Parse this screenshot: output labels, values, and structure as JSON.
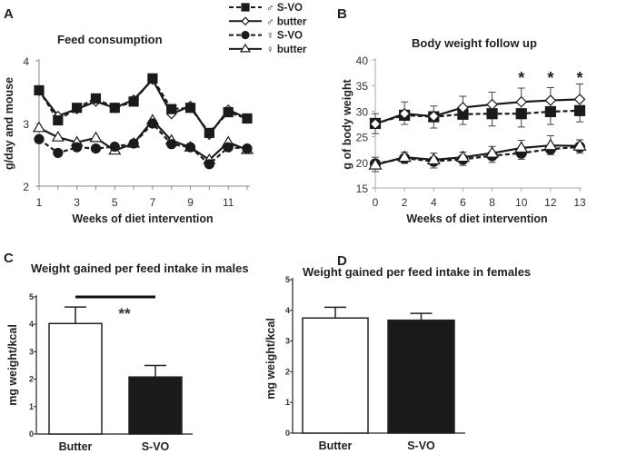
{
  "legend": [
    {
      "label": "♂ S-VO",
      "marker": "square",
      "fill": "#1a1a1a",
      "dashed": true
    },
    {
      "label": "♂ butter",
      "marker": "diamond",
      "fill": "#ffffff",
      "dashed": false
    },
    {
      "label": "♀ S-VO",
      "marker": "circle",
      "fill": "#1a1a1a",
      "dashed": true
    },
    {
      "label": "♀ butter",
      "marker": "triangle",
      "fill": "#ffffff",
      "dashed": false
    }
  ],
  "chart_data": [
    {
      "panel": "A",
      "type": "line",
      "title": "Feed consumption",
      "xlabel": "Weeks of diet intervention",
      "ylabel": "g/day and mouse",
      "x": [
        1,
        2,
        3,
        4,
        5,
        6,
        7,
        8,
        9,
        10,
        11,
        12
      ],
      "xticks": [
        "1",
        "3",
        "5",
        "7",
        "9",
        "11"
      ],
      "yticks": [
        "2",
        "3",
        "4"
      ],
      "ylim": [
        2,
        4
      ],
      "series": [
        {
          "name": "♂ butter",
          "values": [
            3.52,
            3.12,
            3.23,
            3.35,
            3.25,
            3.38,
            3.7,
            3.15,
            3.28,
            2.82,
            3.22,
            3.08
          ]
        },
        {
          "name": "♂ S-VO",
          "values": [
            3.53,
            3.05,
            3.25,
            3.4,
            3.25,
            3.35,
            3.72,
            3.23,
            3.25,
            2.85,
            3.18,
            3.08
          ]
        },
        {
          "name": "♀ butter",
          "values": [
            2.93,
            2.78,
            2.7,
            2.77,
            2.57,
            2.68,
            3.05,
            2.73,
            2.62,
            2.42,
            2.7,
            2.58
          ]
        },
        {
          "name": "♀ S-VO",
          "values": [
            2.75,
            2.53,
            2.62,
            2.6,
            2.63,
            2.68,
            3.0,
            2.67,
            2.62,
            2.35,
            2.62,
            2.6
          ]
        }
      ]
    },
    {
      "panel": "B",
      "type": "line",
      "title": "Body weight follow up",
      "xlabel": "Weeks of diet intervention",
      "ylabel": "g of body weight",
      "x": [
        0,
        2,
        4,
        6,
        8,
        10,
        12,
        13
      ],
      "yticks": [
        "15",
        "20",
        "25",
        "30",
        "35",
        "40"
      ],
      "ylim": [
        15,
        40
      ],
      "significance": {
        "label": "*",
        "at": [
          10,
          12,
          13
        ]
      },
      "series": [
        {
          "name": "♂ S-VO",
          "values": [
            27.6,
            29.2,
            28.9,
            29.4,
            29.5,
            29.5,
            29.9,
            30.1
          ],
          "err": [
            2.0,
            1.8,
            2.2,
            2.0,
            2.4,
            2.6,
            2.5,
            2.2
          ]
        },
        {
          "name": "♂ butter",
          "values": [
            27.5,
            29.5,
            29.0,
            30.7,
            31.3,
            31.8,
            32.1,
            32.3
          ],
          "err": [
            2.0,
            2.3,
            2.0,
            2.2,
            2.4,
            2.7,
            2.5,
            3.0
          ]
        },
        {
          "name": "♀ S-VO",
          "values": [
            19.7,
            20.8,
            20.2,
            20.6,
            21.3,
            21.8,
            22.6,
            23.0
          ],
          "err": [
            1.5,
            1.0,
            1.3,
            1.2,
            1.3,
            1.2,
            1.1,
            1.2
          ]
        },
        {
          "name": "♀ butter",
          "values": [
            19.5,
            21.0,
            20.5,
            21.0,
            21.8,
            22.8,
            23.3,
            23.2
          ],
          "err": [
            1.5,
            1.0,
            1.3,
            1.0,
            1.3,
            1.5,
            1.9,
            1.2
          ]
        }
      ]
    },
    {
      "panel": "C",
      "type": "bar",
      "title": "Weight gained per feed intake in males",
      "ylabel": "mg weight/kcal",
      "categories": [
        "Butter",
        "S-VO"
      ],
      "values": [
        4.03,
        2.08
      ],
      "err": [
        0.6,
        0.42
      ],
      "colors": [
        "#ffffff",
        "#1a1a1a"
      ],
      "yticks": [
        "0",
        "1",
        "2",
        "3",
        "4",
        "5"
      ],
      "ylim": [
        0,
        5
      ],
      "significance": "**"
    },
    {
      "panel": "D",
      "type": "bar",
      "title": "Weight gained per feed intake in females",
      "ylabel": "mg weight/kcal",
      "categories": [
        "Butter",
        "S-VO"
      ],
      "values": [
        3.75,
        3.68
      ],
      "err": [
        0.35,
        0.22
      ],
      "colors": [
        "#ffffff",
        "#1a1a1a"
      ],
      "yticks": [
        "0",
        "1",
        "2",
        "3",
        "4",
        "5"
      ],
      "ylim": [
        0,
        5
      ]
    }
  ]
}
